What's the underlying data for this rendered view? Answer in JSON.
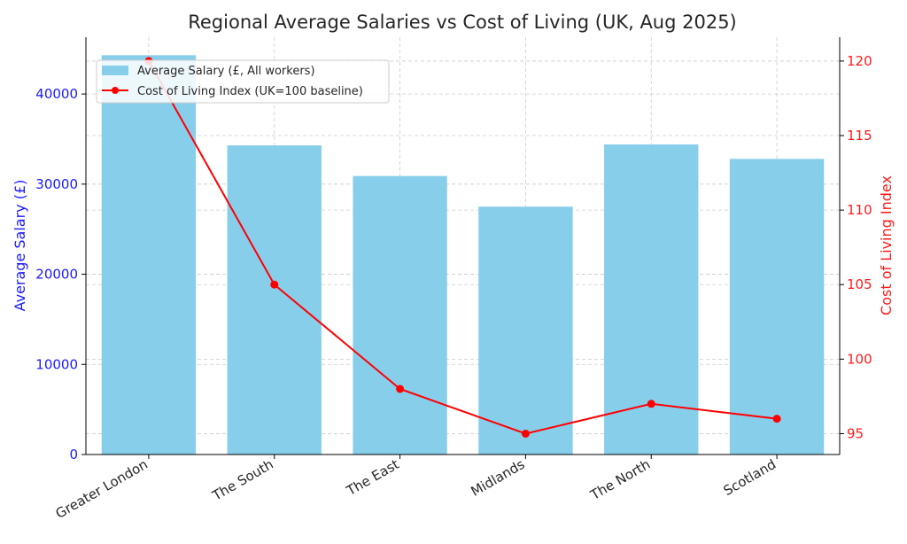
{
  "chart_data": {
    "type": "bar+line",
    "title": "Regional Average Salaries vs Cost of Living (UK, Aug 2025)",
    "categories": [
      "Greater London",
      "The South",
      "The East",
      "Midlands",
      "The North",
      "Scotland"
    ],
    "series": [
      {
        "name": "Average Salary (£, All workers)",
        "kind": "bar",
        "axis": "left",
        "color": "#87ceeb",
        "values": [
          44300,
          34300,
          30900,
          27500,
          34400,
          32800
        ]
      },
      {
        "name": "Cost of Living Index (UK=100 baseline)",
        "kind": "line",
        "axis": "right",
        "color": "#ff0000",
        "values": [
          120,
          105,
          98,
          95,
          97,
          96
        ]
      }
    ],
    "ylabel_left": "Average Salary (£)",
    "ylabel_right": "Cost of Living Index",
    "ylim_left": [
      0,
      46300
    ],
    "ylim_right": [
      93.6,
      121.6
    ],
    "yticks_left": [
      0,
      10000,
      20000,
      30000,
      40000
    ],
    "yticks_right": [
      95,
      100,
      105,
      110,
      115,
      120
    ],
    "grid": true,
    "legend_position": "top-left",
    "colors": {
      "left_axis": "#1a1aff",
      "right_axis": "#ff1a1a",
      "grid": "#cccccc",
      "text": "#262626"
    }
  }
}
